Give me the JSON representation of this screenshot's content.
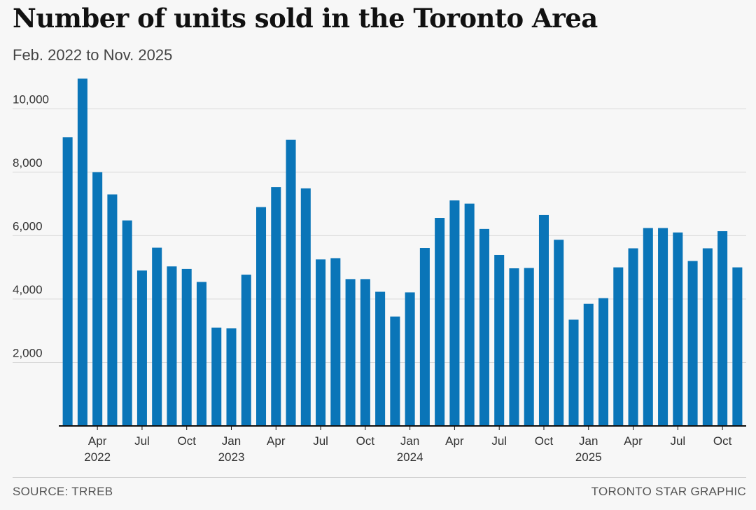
{
  "chart_data": {
    "type": "bar",
    "title": "Number of units sold in the Toronto Area",
    "subtitle": "Feb. 2022 to Nov. 2025",
    "xlabel": "",
    "ylabel": "",
    "ylim": [
      0,
      11000
    ],
    "yticks": [
      2000,
      4000,
      6000,
      8000,
      10000
    ],
    "ytick_labels": [
      "2,000",
      "4,000",
      "6,000",
      "8,000",
      "10,000"
    ],
    "grid": true,
    "bar_color": "#0a75b8",
    "categories": [
      "Feb 2022",
      "Mar 2022",
      "Apr 2022",
      "May 2022",
      "Jun 2022",
      "Jul 2022",
      "Aug 2022",
      "Sep 2022",
      "Oct 2022",
      "Nov 2022",
      "Dec 2022",
      "Jan 2023",
      "Feb 2023",
      "Mar 2023",
      "Apr 2023",
      "May 2023",
      "Jun 2023",
      "Jul 2023",
      "Aug 2023",
      "Sep 2023",
      "Oct 2023",
      "Nov 2023",
      "Dec 2023",
      "Jan 2024",
      "Feb 2024",
      "Mar 2024",
      "Apr 2024",
      "May 2024",
      "Jun 2024",
      "Jul 2024",
      "Aug 2024",
      "Sep 2024",
      "Oct 2024",
      "Nov 2024",
      "Dec 2024",
      "Jan 2025",
      "Feb 2025",
      "Mar 2025",
      "Apr 2025",
      "May 2025",
      "Jun 2025",
      "Jul 2025",
      "Aug 2025",
      "Sep 2025",
      "Oct 2025",
      "Nov 2025"
    ],
    "values": [
      9100,
      10950,
      8000,
      7300,
      6480,
      4900,
      5620,
      5030,
      4950,
      4540,
      3100,
      3080,
      4770,
      6900,
      7530,
      9020,
      7490,
      5250,
      5290,
      4630,
      4630,
      4230,
      3450,
      4210,
      5610,
      6560,
      7110,
      7010,
      6210,
      5390,
      4970,
      4980,
      6650,
      5870,
      3350,
      3850,
      4030,
      5000,
      5600,
      6240,
      6240,
      6100,
      5200,
      5600,
      6140,
      5000
    ],
    "x_tick_labels": [
      {
        "index": 2,
        "month": "Apr",
        "year": "2022"
      },
      {
        "index": 5,
        "month": "Jul",
        "year": ""
      },
      {
        "index": 8,
        "month": "Oct",
        "year": ""
      },
      {
        "index": 11,
        "month": "Jan",
        "year": "2023"
      },
      {
        "index": 14,
        "month": "Apr",
        "year": ""
      },
      {
        "index": 17,
        "month": "Jul",
        "year": ""
      },
      {
        "index": 20,
        "month": "Oct",
        "year": ""
      },
      {
        "index": 23,
        "month": "Jan",
        "year": "2024"
      },
      {
        "index": 26,
        "month": "Apr",
        "year": ""
      },
      {
        "index": 29,
        "month": "Jul",
        "year": ""
      },
      {
        "index": 32,
        "month": "Oct",
        "year": ""
      },
      {
        "index": 35,
        "month": "Jan",
        "year": "2025"
      },
      {
        "index": 38,
        "month": "Apr",
        "year": ""
      },
      {
        "index": 41,
        "month": "Jul",
        "year": ""
      },
      {
        "index": 44,
        "month": "Oct",
        "year": ""
      }
    ]
  },
  "footer": {
    "source": "SOURCE: TRREB",
    "credit": "TORONTO STAR GRAPHIC"
  }
}
